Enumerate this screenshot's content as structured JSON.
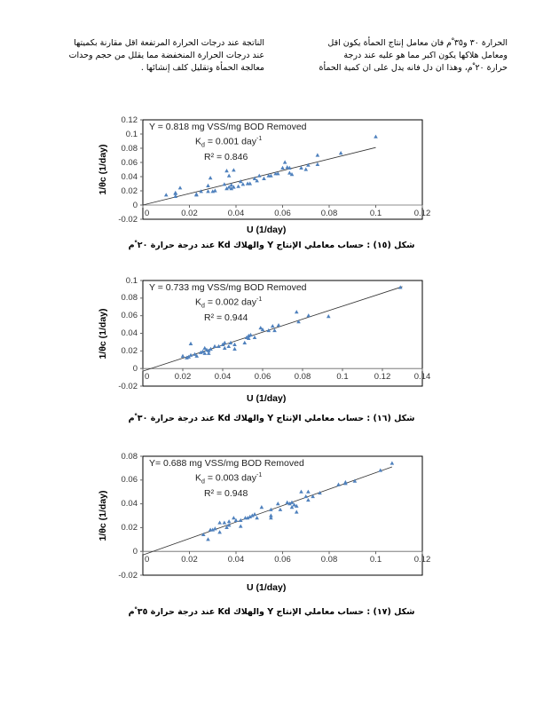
{
  "text": {
    "right_column": [
      "الحرارة ٣٠ و٣٥ ْم فان معامل إنتاج الحمأة يكون اقل",
      "ومعامل هلاكها يكون اكبر مما هو عليه عند درجة",
      "حرارة ٢٠ ْم، وهذا ان دل فانه يدل على ان كمية الحمأة"
    ],
    "left_column": [
      "الناتجة عند درجات الحرارة المرتفعة اقل مقارنة بكميتها",
      "عند درجات الحرارة المنخفضة مما يقلل من حجم وحدات",
      "معالجة الحمأة وتقليل كلف إنشائها ."
    ]
  },
  "chart_data": [
    {
      "type": "scatter",
      "caption": "شكل (١٥) : حساب معاملي الإنتاج Y والهلاك Kd عند درجة حرارة ٢٠ ْم",
      "xlabel": "U (1/day)",
      "ylabel": "1/θc (1/day)",
      "xlim": [
        0,
        0.12
      ],
      "ylim": [
        -0.02,
        0.12
      ],
      "xticks": [
        "0",
        "0.02",
        "0.04",
        "0.06",
        "0.08",
        "0.1",
        "0.12"
      ],
      "yticks": [
        "-0.02",
        "0",
        "0.02",
        "0.04",
        "0.06",
        "0.08",
        "0.1",
        "0.12"
      ],
      "equation": {
        "y_line": "Y = 0.818 mg VSS/mg BOD Removed",
        "kd_prefix": "K",
        "kd_sub": "d",
        "kd_value": " = 0.001 day",
        "kd_sup": "-1",
        "r2": "R² = 0.846"
      },
      "trendline": [
        [
          0,
          0
        ],
        [
          0.1,
          0.081
        ]
      ],
      "marker_color": "#4f81bd",
      "points": [
        [
          0.01,
          0.014
        ],
        [
          0.014,
          0.016
        ],
        [
          0.014,
          0.012
        ],
        [
          0.014,
          0.017
        ],
        [
          0.016,
          0.024
        ],
        [
          0.023,
          0.014
        ],
        [
          0.023,
          0.015
        ],
        [
          0.025,
          0.019
        ],
        [
          0.028,
          0.027
        ],
        [
          0.028,
          0.019
        ],
        [
          0.029,
          0.038
        ],
        [
          0.03,
          0.019
        ],
        [
          0.031,
          0.02
        ],
        [
          0.035,
          0.029
        ],
        [
          0.036,
          0.023
        ],
        [
          0.036,
          0.048
        ],
        [
          0.037,
          0.041
        ],
        [
          0.037,
          0.025
        ],
        [
          0.038,
          0.023
        ],
        [
          0.038,
          0.028
        ],
        [
          0.039,
          0.049
        ],
        [
          0.039,
          0.025
        ],
        [
          0.041,
          0.026
        ],
        [
          0.042,
          0.033
        ],
        [
          0.043,
          0.029
        ],
        [
          0.045,
          0.03
        ],
        [
          0.046,
          0.03
        ],
        [
          0.048,
          0.037
        ],
        [
          0.049,
          0.034
        ],
        [
          0.05,
          0.041
        ],
        [
          0.052,
          0.037
        ],
        [
          0.054,
          0.041
        ],
        [
          0.055,
          0.041
        ],
        [
          0.057,
          0.044
        ],
        [
          0.058,
          0.044
        ],
        [
          0.06,
          0.052
        ],
        [
          0.061,
          0.06
        ],
        [
          0.062,
          0.053
        ],
        [
          0.063,
          0.052
        ],
        [
          0.063,
          0.045
        ],
        [
          0.064,
          0.043
        ],
        [
          0.068,
          0.052
        ],
        [
          0.07,
          0.05
        ],
        [
          0.071,
          0.056
        ],
        [
          0.075,
          0.057
        ],
        [
          0.075,
          0.07
        ],
        [
          0.085,
          0.073
        ],
        [
          0.1,
          0.096
        ]
      ]
    },
    {
      "type": "scatter",
      "caption": "شكل (١٦) : حساب معاملي الإنتاج Y والهلاك Kd عند درجة حرارة ٣٠ ْم",
      "xlabel": "U (1/day)",
      "ylabel": "1/θc (1/day)",
      "xlim": [
        0,
        0.14
      ],
      "ylim": [
        -0.02,
        0.1
      ],
      "xticks": [
        "0",
        "0.02",
        "0.04",
        "0.06",
        "0.08",
        "0.1",
        "0.12",
        "0.14"
      ],
      "yticks": [
        "-0.02",
        "0",
        "0.02",
        "0.04",
        "0.06",
        "0.08",
        "0.1"
      ],
      "equation": {
        "y_line": "Y = 0.733 mg VSS/mg BOD Removed",
        "kd_prefix": "K",
        "kd_sub": "d",
        "kd_value": " = 0.002 day",
        "kd_sup": "-1",
        "r2": "R² = 0.944"
      },
      "trendline": [
        [
          0,
          -0.003
        ],
        [
          0.13,
          0.093
        ]
      ],
      "marker_color": "#4f81bd",
      "points": [
        [
          0.02,
          0.014
        ],
        [
          0.022,
          0.012
        ],
        [
          0.023,
          0.013
        ],
        [
          0.024,
          0.028
        ],
        [
          0.024,
          0.015
        ],
        [
          0.026,
          0.016
        ],
        [
          0.027,
          0.014
        ],
        [
          0.029,
          0.018
        ],
        [
          0.03,
          0.019
        ],
        [
          0.031,
          0.023
        ],
        [
          0.031,
          0.017
        ],
        [
          0.032,
          0.021
        ],
        [
          0.033,
          0.02
        ],
        [
          0.033,
          0.017
        ],
        [
          0.034,
          0.022
        ],
        [
          0.036,
          0.025
        ],
        [
          0.038,
          0.025
        ],
        [
          0.04,
          0.027
        ],
        [
          0.041,
          0.029
        ],
        [
          0.041,
          0.023
        ],
        [
          0.043,
          0.025
        ],
        [
          0.044,
          0.029
        ],
        [
          0.046,
          0.022
        ],
        [
          0.046,
          0.027
        ],
        [
          0.051,
          0.029
        ],
        [
          0.052,
          0.035
        ],
        [
          0.053,
          0.037
        ],
        [
          0.053,
          0.034
        ],
        [
          0.054,
          0.038
        ],
        [
          0.056,
          0.035
        ],
        [
          0.059,
          0.046
        ],
        [
          0.06,
          0.044
        ],
        [
          0.063,
          0.043
        ],
        [
          0.065,
          0.048
        ],
        [
          0.066,
          0.043
        ],
        [
          0.068,
          0.049
        ],
        [
          0.077,
          0.064
        ],
        [
          0.078,
          0.053
        ],
        [
          0.083,
          0.06
        ],
        [
          0.093,
          0.059
        ],
        [
          0.129,
          0.092
        ]
      ]
    },
    {
      "type": "scatter",
      "caption": "شكل (١٧) : حساب معاملي الإنتاج Y والهلاك Kd عند درجة حرارة ٣٥ ْم",
      "xlabel": "U (1/day)",
      "ylabel": "1/θc (1/day)",
      "xlim": [
        0,
        0.12
      ],
      "ylim": [
        -0.02,
        0.08
      ],
      "xticks": [
        "0",
        "0.02",
        "0.04",
        "0.06",
        "0.08",
        "0.1",
        "0.12"
      ],
      "yticks": [
        "-0.02",
        "0",
        "0.02",
        "0.04",
        "0.06",
        "0.08"
      ],
      "equation": {
        "y_line": "Y= 0.688 mg VSS/mg BOD Removed",
        "kd_prefix": "K",
        "kd_sub": "d",
        "kd_value": " = 0.003 day",
        "kd_sup": "-1",
        "r2": "R² = 0.948"
      },
      "trendline": [
        [
          0,
          -0.003
        ],
        [
          0.107,
          0.071
        ]
      ],
      "marker_color": "#4f81bd",
      "points": [
        [
          0.026,
          0.014
        ],
        [
          0.028,
          0.01
        ],
        [
          0.029,
          0.018
        ],
        [
          0.03,
          0.018
        ],
        [
          0.031,
          0.019
        ],
        [
          0.033,
          0.024
        ],
        [
          0.033,
          0.016
        ],
        [
          0.035,
          0.024
        ],
        [
          0.036,
          0.02
        ],
        [
          0.037,
          0.025
        ],
        [
          0.037,
          0.022
        ],
        [
          0.039,
          0.028
        ],
        [
          0.04,
          0.026
        ],
        [
          0.042,
          0.026
        ],
        [
          0.042,
          0.021
        ],
        [
          0.044,
          0.028
        ],
        [
          0.045,
          0.028
        ],
        [
          0.046,
          0.029
        ],
        [
          0.047,
          0.03
        ],
        [
          0.048,
          0.031
        ],
        [
          0.049,
          0.028
        ],
        [
          0.051,
          0.037
        ],
        [
          0.055,
          0.03
        ],
        [
          0.055,
          0.028
        ],
        [
          0.055,
          0.035
        ],
        [
          0.058,
          0.04
        ],
        [
          0.059,
          0.035
        ],
        [
          0.062,
          0.041
        ],
        [
          0.063,
          0.04
        ],
        [
          0.064,
          0.041
        ],
        [
          0.064,
          0.037
        ],
        [
          0.065,
          0.039
        ],
        [
          0.066,
          0.033
        ],
        [
          0.066,
          0.038
        ],
        [
          0.068,
          0.05
        ],
        [
          0.07,
          0.046
        ],
        [
          0.071,
          0.05
        ],
        [
          0.071,
          0.043
        ],
        [
          0.073,
          0.046
        ],
        [
          0.076,
          0.049
        ],
        [
          0.084,
          0.056
        ],
        [
          0.087,
          0.058
        ],
        [
          0.087,
          0.057
        ],
        [
          0.091,
          0.059
        ],
        [
          0.102,
          0.068
        ],
        [
          0.107,
          0.074
        ]
      ]
    }
  ]
}
